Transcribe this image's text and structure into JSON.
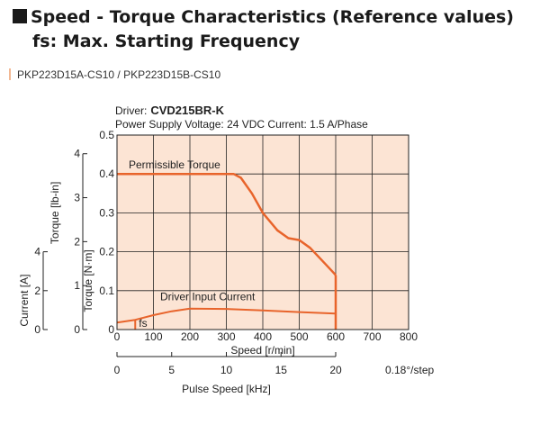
{
  "header": {
    "title": "Speed - Torque Characteristics (Reference values)",
    "subtitle": "fs: Max. Starting Frequency",
    "model": "PKP223D15A-CS10 / PKP223D15B-CS10"
  },
  "chart_data": {
    "type": "line",
    "driver_label": "Driver:",
    "driver_name": "CVD215BR-K",
    "conditions": "Power Supply Voltage: 24 VDC  Current: 1.5 A/Phase",
    "xlabel": "Speed [r/min]",
    "xlim": [
      0,
      800
    ],
    "xticks": [
      "0",
      "100",
      "200",
      "300",
      "400",
      "500",
      "600",
      "700",
      "800"
    ],
    "x2label": "Pulse Speed [kHz]",
    "x2lim": [
      0,
      20
    ],
    "x2ticks": [
      "0",
      "5",
      "10",
      "15",
      "20"
    ],
    "x2unit": "0.18°/step",
    "ylabel_nm": "Torque [N·m]",
    "ylim_nm": [
      0,
      0.5
    ],
    "yticks_nm": [
      "0",
      "0.1",
      "0.2",
      "0.3",
      "0.4",
      "0.5"
    ],
    "ylabel_lbin": "Torque [lb-in]",
    "yticks_lbin": [
      "0",
      "1",
      "2",
      "3",
      "4"
    ],
    "ylabel_current": "Current [A]",
    "yticks_current": [
      "0",
      "2",
      "4"
    ],
    "grid": true,
    "colors": {
      "background": "#fce4d4",
      "line": "#e8642b",
      "grid": "#222222"
    },
    "series": [
      {
        "name": "Permissible Torque",
        "x": [
          0,
          50,
          100,
          200,
          320,
          340,
          370,
          400,
          440,
          470,
          500,
          530,
          560,
          590,
          600
        ],
        "y": [
          0.4,
          0.4,
          0.4,
          0.4,
          0.4,
          0.39,
          0.35,
          0.3,
          0.255,
          0.235,
          0.23,
          0.21,
          0.18,
          0.15,
          0.14
        ]
      },
      {
        "name": "Driver Input Current",
        "x": [
          0,
          50,
          100,
          150,
          200,
          300,
          400,
          500,
          600
        ],
        "y": [
          0.018,
          0.025,
          0.037,
          0.047,
          0.054,
          0.053,
          0.049,
          0.045,
          0.041
        ]
      }
    ],
    "fs_label": "fs",
    "fs_x": 50,
    "fs_y": 0.025
  }
}
